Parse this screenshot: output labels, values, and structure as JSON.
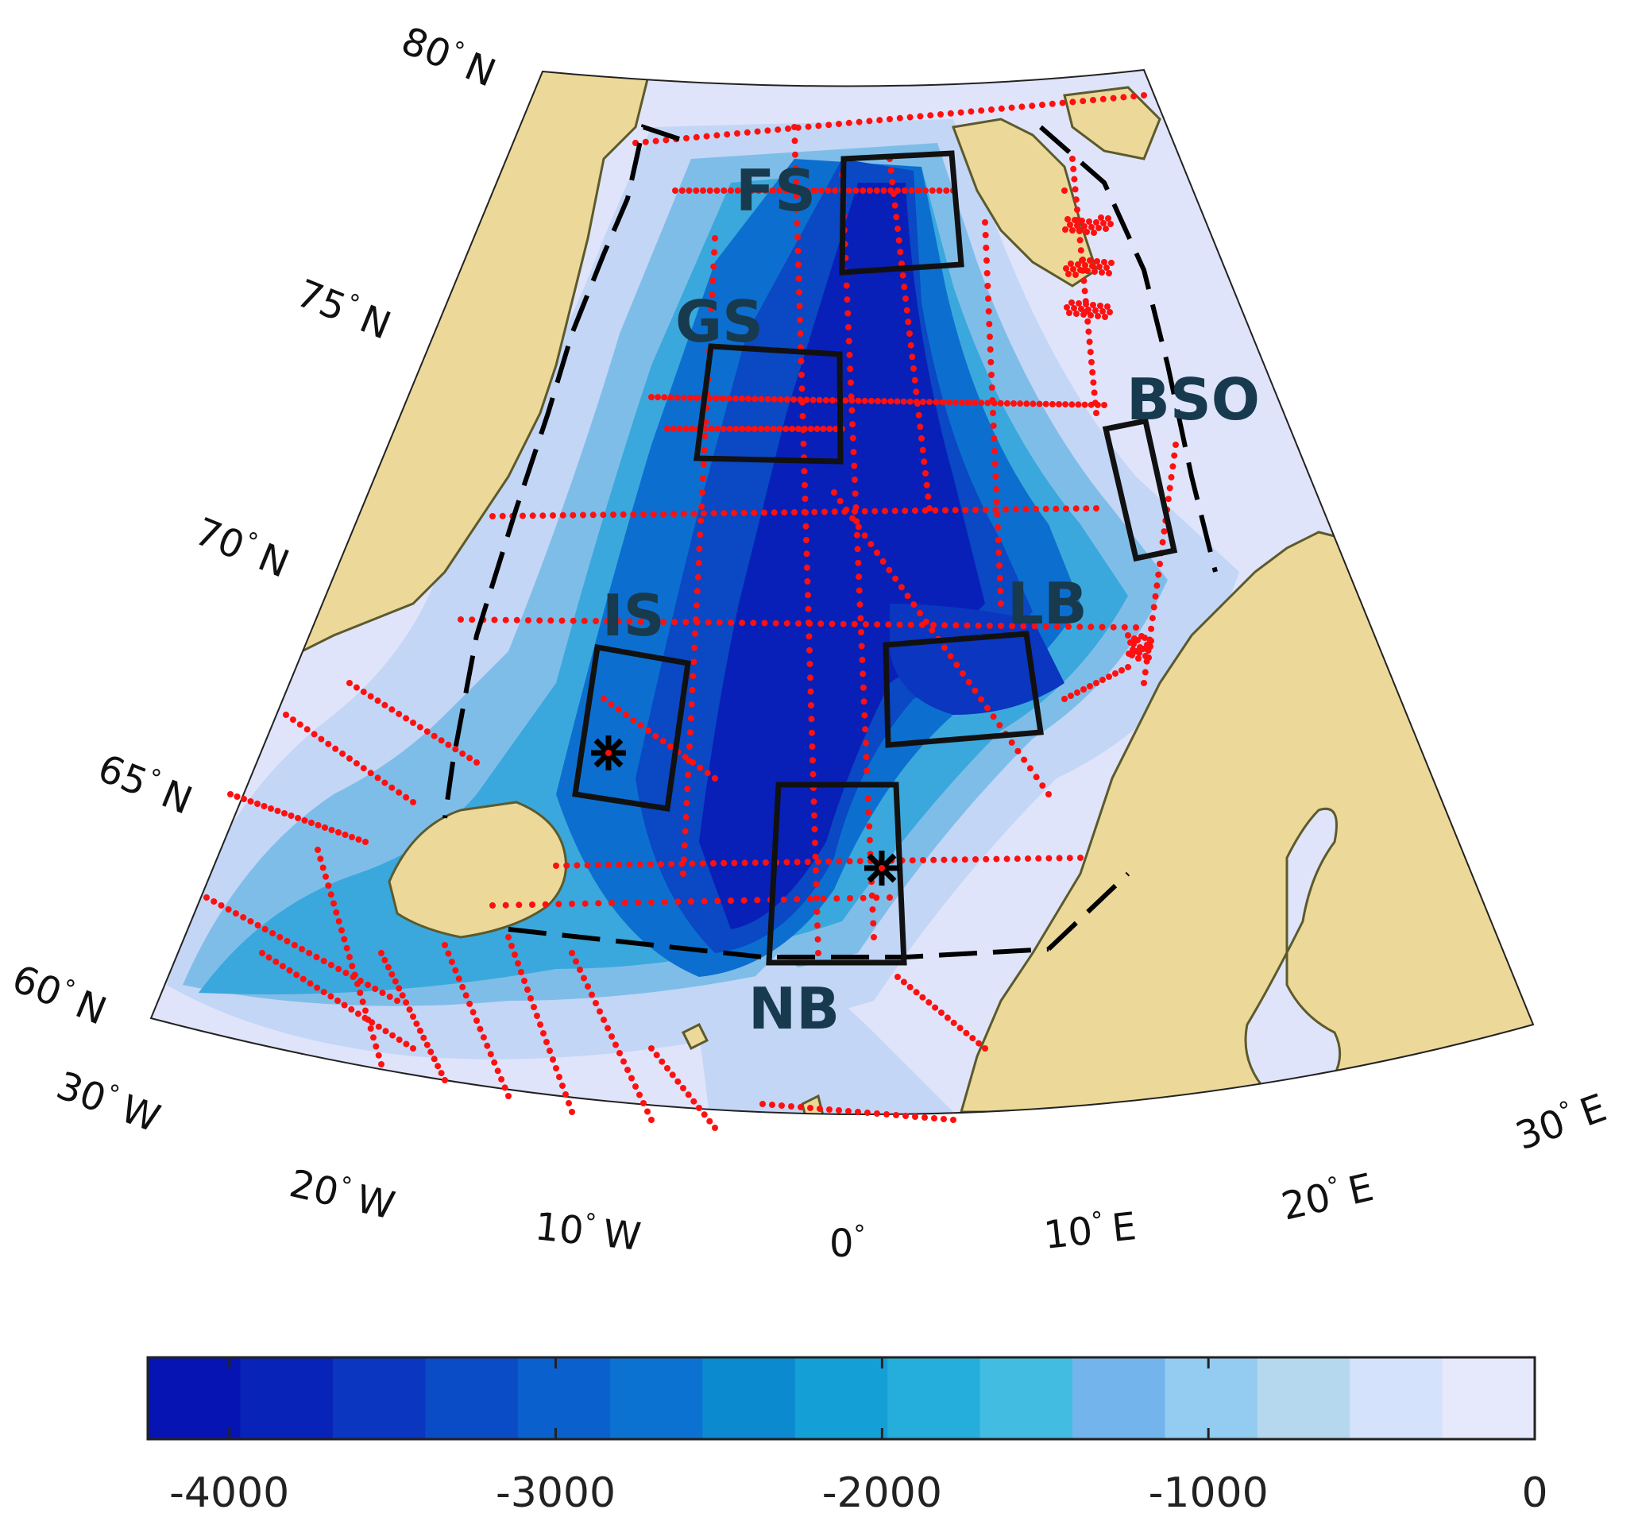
{
  "colors": {
    "land": "#ecd99a",
    "coast": "#5c5a2c",
    "stations": "#ff1010",
    "boxes": "#111111"
  },
  "labels": {
    "lat_80": "80",
    "lat_75": "75",
    "lat_70": "70",
    "lat_65": "65",
    "lat_60": "60",
    "north": "N",
    "lon_30w": "30",
    "lon_20w": "20",
    "lon_10w": "10",
    "lon_0": "0",
    "lon_10e": "10",
    "lon_20e": "20",
    "lon_30e": "30",
    "west": "W",
    "east": "E",
    "degree": "°"
  },
  "regions": {
    "fs": "FS",
    "gs": "GS",
    "bso": "BSO",
    "is": "IS",
    "lb": "LB",
    "nb": "NB"
  },
  "colorbar": {
    "min": -4250,
    "max": 0,
    "ticks": [
      "-4000",
      "-3000",
      "-2000",
      "-1000",
      "0"
    ],
    "colors": [
      "#0714b4",
      "#0823b8",
      "#0a36c0",
      "#0a4bc6",
      "#0a60cc",
      "#0c72d2",
      "#0b8ad0",
      "#14a0d6",
      "#25aedc",
      "#42bce0",
      "#74b4ec",
      "#94cbf0",
      "#b6d8ee",
      "#d4e2fb",
      "#e6e8fb"
    ]
  }
}
